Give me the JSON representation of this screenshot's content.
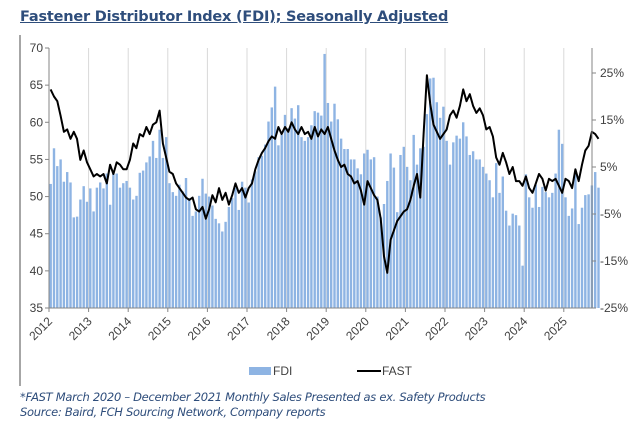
{
  "title": "Fastener Distributor Index (FDI); Seasonally Adjusted",
  "footnote": {
    "line1": "*FAST March 2020 – December 2021 Monthly Sales Presented as ex. Safety Products",
    "line2": "Source: Baird, FCH Sourcing Network, Company reports"
  },
  "chart_data": {
    "type": "bar+line",
    "title": "Fastener Distributor Index (FDI); Seasonally Adjusted",
    "x_tick_labels": [
      "2012",
      "2013",
      "2014",
      "2015",
      "2016",
      "2017",
      "2018",
      "2019",
      "2020",
      "2021",
      "2022",
      "2023",
      "2024",
      "2025"
    ],
    "start": "2012-01",
    "frequency": "monthly",
    "left_axis": {
      "label": "",
      "ylim": [
        35,
        70
      ],
      "ticks": [
        35,
        40,
        45,
        50,
        55,
        60,
        65,
        70
      ]
    },
    "right_axis": {
      "label": "",
      "ylim": [
        -25,
        30
      ],
      "ticks": [
        "-25%",
        "-15%",
        "-5%",
        "5%",
        "15%",
        "25%"
      ],
      "tick_values": [
        -25,
        -15,
        -5,
        5,
        15,
        25
      ]
    },
    "grid": "vertical at years",
    "legend": {
      "placement": "bottom",
      "entries": [
        {
          "name": "FDI",
          "type": "bar",
          "color": "#8eb4e3"
        },
        {
          "name": "FAST",
          "type": "line",
          "color": "#000000"
        }
      ]
    },
    "series": [
      {
        "name": "FDI",
        "axis": "left",
        "type": "bar",
        "color": "#8eb4e3",
        "values": [
          51.7,
          56.5,
          54.1,
          55.0,
          52.0,
          53.3,
          51.9,
          47.2,
          47.3,
          49.6,
          51.4,
          49.3,
          51.1,
          48.0,
          51.2,
          51.9,
          51.1,
          53.1,
          48.9,
          53.1,
          53.1,
          51.2,
          51.8,
          52.1,
          51.2,
          49.6,
          50.1,
          53.2,
          53.5,
          54.6,
          55.4,
          57.5,
          55.2,
          59.0,
          55.2,
          58.0,
          51.8,
          50.6,
          50.1,
          51.6,
          50.7,
          52.5,
          49.8,
          47.4,
          48.0,
          50.1,
          52.4,
          50.4,
          50.0,
          48.8,
          47.0,
          46.4,
          45.3,
          46.6,
          48.6,
          49.8,
          51.2,
          48.2,
          52.0,
          51.2,
          49.2,
          52.3,
          53.4,
          55.3,
          55.5,
          57.0,
          60.1,
          62.0,
          64.8,
          56.9,
          58.3,
          61.0,
          59.2,
          61.9,
          60.5,
          62.3,
          58.0,
          57.5,
          58.0,
          59.6,
          61.5,
          61.3,
          60.9,
          69.2,
          62.6,
          60.1,
          62.5,
          60.4,
          57.8,
          56.4,
          56.4,
          55.0,
          55.0,
          53.8,
          53.0,
          55.8,
          56.3,
          55.0,
          55.3,
          50.0,
          47.2,
          49.0,
          52.1,
          55.8,
          53.9,
          47.9,
          55.6,
          56.7,
          54.0,
          52.2,
          58.3,
          54.3,
          56.5,
          56.7,
          61.1,
          65.9,
          66.0,
          62.7,
          60.6,
          62.1,
          57.5,
          54.3,
          57.3,
          58.2,
          57.8,
          60.0,
          58.1,
          55.6,
          56.1,
          55.0,
          55.0,
          54.0,
          53.1,
          52.2,
          49.9,
          54.5,
          50.5,
          52.7,
          48.1,
          46.1,
          47.7,
          47.5,
          46.1,
          40.7,
          53.0,
          49.9,
          48.5,
          51.6,
          48.6,
          51.3,
          50.6,
          49.9,
          50.5,
          53.1,
          59.0,
          57.1,
          49.9,
          47.4,
          48.4,
          53.1,
          46.3,
          48.5,
          50.2,
          50.3,
          51.5,
          53.3,
          51.2
        ]
      },
      {
        "name": "FAST",
        "axis": "right",
        "type": "line",
        "color": "#000000",
        "unit": "%",
        "values": [
          21.5,
          20.0,
          19.0,
          16.0,
          12.5,
          13.0,
          11.0,
          12.5,
          11.0,
          6.5,
          8.5,
          6.0,
          4.5,
          3.0,
          3.5,
          3.0,
          3.5,
          1.5,
          5.5,
          3.5,
          6.0,
          5.5,
          4.5,
          4.5,
          6.5,
          10.0,
          9.0,
          12.0,
          11.5,
          13.5,
          12.0,
          14.0,
          14.5,
          17.0,
          10.0,
          7.0,
          4.0,
          3.5,
          1.5,
          0.5,
          -0.5,
          -1.5,
          -2.0,
          -1.5,
          -4.0,
          -4.5,
          -3.5,
          -6.0,
          -4.0,
          -1.0,
          -2.5,
          0.5,
          -2.0,
          -0.5,
          -3.0,
          -1.0,
          1.5,
          -0.5,
          0.5,
          -1.5,
          0.5,
          1.5,
          4.5,
          6.5,
          8.0,
          9.0,
          10.5,
          11.5,
          11.0,
          13.5,
          12.0,
          13.5,
          12.5,
          14.5,
          13.0,
          12.0,
          13.5,
          12.0,
          12.5,
          11.0,
          13.5,
          11.5,
          13.0,
          12.0,
          13.5,
          11.0,
          8.5,
          6.5,
          5.0,
          5.5,
          3.5,
          3.0,
          1.5,
          2.0,
          0.0,
          -3.0,
          2.0,
          0.5,
          -1.0,
          -2.0,
          -6.0,
          -14.0,
          -17.5,
          -10.5,
          -8.5,
          -6.5,
          -5.5,
          -4.5,
          -4.0,
          -2.0,
          1.0,
          3.5,
          -1.5,
          12.0,
          24.5,
          18.5,
          14.0,
          12.5,
          11.0,
          12.0,
          13.0,
          16.0,
          17.0,
          15.5,
          18.0,
          21.5,
          19.0,
          20.5,
          18.0,
          16.5,
          17.5,
          16.0,
          13.0,
          13.5,
          11.5,
          7.0,
          5.5,
          8.0,
          6.0,
          3.5,
          5.0,
          2.0,
          2.0,
          1.0,
          3.0,
          0.5,
          -0.5,
          1.5,
          3.5,
          2.5,
          0.0,
          2.5,
          2.0,
          2.5,
          1.0,
          -0.5,
          2.5,
          2.0,
          0.5,
          4.5,
          2.0,
          5.5,
          8.5,
          9.5,
          12.5,
          12.0,
          11.0
        ]
      }
    ]
  }
}
